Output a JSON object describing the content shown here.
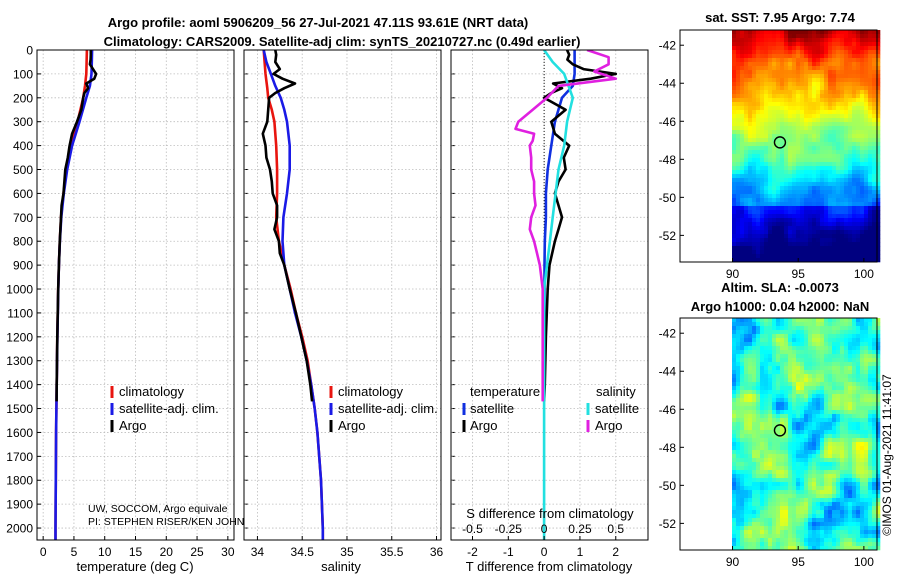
{
  "title": {
    "line1": "Argo profile: aoml 5906209_56 27-Jul-2021 47.11S 93.61E (NRT data)",
    "line2": "Climatology: CARS2009. Satellite-adj clim: synTS_20210727.nc (0.49d earlier)"
  },
  "colors": {
    "climatology": "#e8150f",
    "satellite": "#1a1ae6",
    "argo": "#000000",
    "sat_temp": "#1030e0",
    "sat_sal": "#22e0e0",
    "argo_sal": "#e020e0"
  },
  "depth_axis": {
    "ticks": [
      "0",
      "100",
      "200",
      "300",
      "400",
      "500",
      "600",
      "700",
      "800",
      "900",
      "1000",
      "1100",
      "1200",
      "1300",
      "1400",
      "1500",
      "1600",
      "1700",
      "1800",
      "1900",
      "2000"
    ],
    "range": [
      0,
      2050
    ]
  },
  "chart_data": [
    {
      "type": "line",
      "id": "temperature",
      "xlabel": "temperature (deg C)",
      "xlim": [
        -1,
        31
      ],
      "xticks": [
        "0",
        "5",
        "10",
        "15",
        "20",
        "25",
        "30"
      ],
      "legend": {
        "climatology": "climatology",
        "satellite": "satellite-adj. clim.",
        "argo": "Argo"
      },
      "credit": [
        "UW, SOCCOM, Argo equivale",
        "PI: STEPHEN RISER/KEN JOHN"
      ],
      "series": [
        {
          "name": "climatology",
          "depth": [
            0,
            50,
            100,
            150,
            200,
            300,
            400,
            500,
            600,
            700,
            800,
            900,
            1000,
            1200,
            1400,
            1600,
            1800,
            2000,
            2050
          ],
          "values": [
            7.1,
            7.05,
            7.0,
            6.8,
            6.5,
            5.6,
            4.5,
            3.8,
            3.3,
            2.9,
            2.7,
            2.55,
            2.45,
            2.3,
            2.2,
            2.1,
            2.05,
            2.0,
            2.0
          ]
        },
        {
          "name": "satellite-adj. clim.",
          "depth": [
            0,
            50,
            100,
            150,
            200,
            300,
            400,
            500,
            600,
            700,
            800,
            900,
            1000,
            1200,
            1400,
            1600,
            1800,
            2000,
            2050
          ],
          "values": [
            7.95,
            7.9,
            7.85,
            7.6,
            7.0,
            5.9,
            4.7,
            3.9,
            3.35,
            2.95,
            2.72,
            2.56,
            2.46,
            2.31,
            2.2,
            2.1,
            2.05,
            2.0,
            2.0
          ]
        },
        {
          "name": "Argo",
          "depth": [
            0,
            20,
            40,
            60,
            80,
            100,
            120,
            140,
            160,
            180,
            200,
            250,
            300,
            350,
            400,
            450,
            500,
            550,
            600,
            650,
            700,
            750,
            800,
            900,
            1000,
            1200,
            1400,
            1470
          ],
          "values": [
            7.74,
            7.74,
            7.7,
            7.6,
            8.1,
            8.6,
            8.3,
            7.0,
            7.3,
            6.7,
            6.5,
            6.2,
            5.5,
            4.7,
            4.3,
            4.0,
            3.6,
            3.45,
            3.3,
            3.0,
            2.9,
            2.8,
            2.7,
            2.55,
            2.45,
            2.3,
            2.2,
            2.18
          ]
        }
      ]
    },
    {
      "type": "line",
      "id": "salinity",
      "xlabel": "salinity",
      "xlim": [
        33.85,
        36.05
      ],
      "xticks": [
        "34",
        "34.5",
        "35",
        "35.5",
        "36"
      ],
      "legend": {
        "climatology": "climatology",
        "satellite": "satellite-adj. clim.",
        "argo": "Argo"
      },
      "series": [
        {
          "name": "climatology",
          "depth": [
            0,
            50,
            100,
            130,
            160,
            200,
            250,
            300,
            400,
            500,
            600,
            700,
            800,
            900,
            1000,
            1100,
            1200,
            1300,
            1400,
            1500,
            1600,
            1800,
            2000,
            2050
          ],
          "values": [
            34.07,
            34.08,
            34.09,
            34.1,
            34.11,
            34.12,
            34.16,
            34.19,
            34.21,
            34.22,
            34.22,
            34.21,
            34.24,
            34.3,
            34.37,
            34.43,
            34.5,
            34.56,
            34.6,
            34.64,
            34.67,
            34.71,
            34.73,
            34.73
          ]
        },
        {
          "name": "satellite-adj. clim.",
          "depth": [
            0,
            50,
            100,
            150,
            200,
            250,
            300,
            400,
            500,
            600,
            700,
            800,
            900,
            1000,
            1100,
            1200,
            1300,
            1400,
            1500,
            1600,
            1800,
            2000,
            2050
          ],
          "values": [
            34.07,
            34.1,
            34.15,
            34.2,
            34.26,
            34.3,
            34.33,
            34.36,
            34.36,
            34.33,
            34.29,
            34.28,
            34.3,
            34.36,
            34.42,
            34.49,
            34.55,
            34.6,
            34.64,
            34.67,
            34.71,
            34.73,
            34.73
          ]
        },
        {
          "name": "Argo",
          "depth": [
            0,
            20,
            50,
            80,
            100,
            120,
            140,
            160,
            180,
            200,
            250,
            300,
            350,
            400,
            450,
            500,
            550,
            600,
            650,
            700,
            750,
            800,
            850,
            900,
            1000,
            1100,
            1200,
            1300,
            1400,
            1470
          ],
          "values": [
            34.2,
            34.21,
            34.2,
            34.25,
            34.18,
            34.28,
            34.42,
            34.3,
            34.2,
            34.13,
            34.12,
            34.11,
            34.06,
            34.09,
            34.1,
            34.14,
            34.16,
            34.17,
            34.22,
            34.22,
            34.19,
            34.24,
            34.25,
            34.3,
            34.36,
            34.43,
            34.49,
            34.55,
            34.59,
            34.61
          ]
        }
      ]
    },
    {
      "type": "line",
      "id": "difference",
      "xlabel": "T difference from climatology",
      "xlabel_top": "S difference from climatology",
      "xlim": [
        -2.6,
        2.9
      ],
      "xticks": [
        "-2",
        "-1",
        "0",
        "1",
        "2"
      ],
      "xticks_s": [
        "-0.5",
        "-0.25",
        "0",
        "0.25",
        "0.5"
      ],
      "legend": {
        "group_temp": "temperature",
        "group_sal": "salinity",
        "sat_temp": "satellite",
        "argo_temp": "Argo",
        "sat_sal": "satellite",
        "argo_sal": "Argo"
      },
      "series": [
        {
          "name": "satellite (T)",
          "depth": [
            0,
            50,
            100,
            150,
            200,
            300,
            400,
            500,
            600,
            700,
            800,
            900,
            1000,
            1200,
            1400,
            1470
          ],
          "values": [
            0.85,
            0.85,
            0.85,
            0.8,
            0.5,
            0.3,
            0.2,
            0.1,
            0.05,
            0.05,
            0.02,
            0.01,
            0.01,
            0.01,
            0.0,
            0.0
          ]
        },
        {
          "name": "Argo (T)",
          "depth": [
            0,
            20,
            40,
            60,
            80,
            100,
            120,
            140,
            160,
            180,
            200,
            250,
            300,
            350,
            400,
            450,
            500,
            550,
            600,
            650,
            700,
            750,
            800,
            900,
            1000,
            1200,
            1400,
            1470
          ],
          "values": [
            0.64,
            0.7,
            0.65,
            0.8,
            1.1,
            2.0,
            1.3,
            0.25,
            0.5,
            0.2,
            0.0,
            0.6,
            0.2,
            0.3,
            0.7,
            0.55,
            0.6,
            0.4,
            0.3,
            0.4,
            0.5,
            0.4,
            0.3,
            0.15,
            0.1,
            0.05,
            0.02,
            0.0
          ]
        },
        {
          "name": "satellite (S)",
          "depth": [
            0,
            50,
            100,
            200,
            300,
            400,
            500,
            600,
            700,
            800,
            900,
            1000,
            1200,
            1400,
            1600,
            1800,
            2000,
            2050
          ],
          "values": [
            0.0,
            0.06,
            0.14,
            0.2,
            0.16,
            0.14,
            0.1,
            0.08,
            0.06,
            0.04,
            0.02,
            0.0,
            0.0,
            0.0,
            0.0,
            0.0,
            0.0,
            0.0
          ]
        },
        {
          "name": "Argo (S)",
          "depth": [
            0,
            30,
            60,
            90,
            120,
            150,
            200,
            250,
            300,
            330,
            350,
            380,
            400,
            450,
            500,
            550,
            600,
            650,
            700,
            750,
            800,
            850,
            900,
            950,
            1000,
            1100,
            1200,
            1300,
            1400,
            1470
          ],
          "values": [
            0.3,
            0.45,
            0.45,
            0.35,
            0.5,
            0.1,
            0.02,
            -0.08,
            -0.18,
            -0.2,
            -0.07,
            -0.08,
            -0.1,
            -0.09,
            -0.09,
            -0.07,
            -0.07,
            -0.06,
            -0.09,
            -0.1,
            -0.07,
            -0.05,
            -0.03,
            -0.02,
            -0.01,
            -0.01,
            -0.01,
            -0.01,
            -0.01,
            -0.01
          ]
        }
      ]
    },
    {
      "type": "heatmap",
      "id": "sst",
      "title": "sat. SST: 7.95 Argo: 7.74",
      "xticks": [
        "90",
        "95",
        "100"
      ],
      "yticks": [
        "-42",
        "-44",
        "-46",
        "-48",
        "-50",
        "-52"
      ],
      "xlim": [
        86,
        101
      ],
      "ylim": [
        -53.4,
        -41.2
      ],
      "marker": {
        "lon": 93.61,
        "lat": -47.11
      }
    },
    {
      "type": "heatmap",
      "id": "sla",
      "title_line1": "Altim. SLA: -0.0073",
      "title_line2": "Argo h1000: 0.04 h2000: NaN",
      "xticks": [
        "90",
        "95",
        "100"
      ],
      "yticks": [
        "-42",
        "-44",
        "-46",
        "-48",
        "-50",
        "-52"
      ],
      "xlim": [
        86,
        101
      ],
      "ylim": [
        -53.4,
        -41.2
      ],
      "marker": {
        "lon": 93.61,
        "lat": -47.11
      }
    }
  ],
  "watermark": "©IMOS 01-Aug-2021 11:41:07"
}
